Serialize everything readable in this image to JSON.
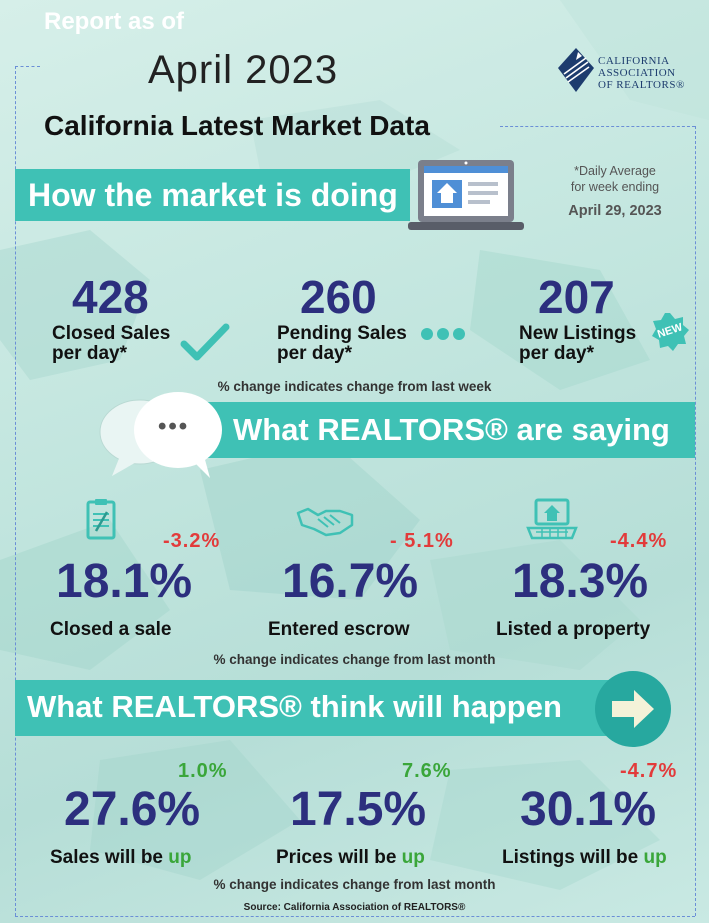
{
  "header": {
    "report_as_of": "Report as of",
    "month": "April 2023",
    "subtitle": "California Latest Market Data",
    "logo_line1": "CALIFORNIA",
    "logo_line2": "ASSOCIATION",
    "logo_line3": "OF REALTORS®"
  },
  "section1": {
    "title": "How the market is doing",
    "daily_line1": "*Daily Average",
    "daily_line2": "for week ending",
    "daily_date": "April 29, 2023",
    "stats": [
      {
        "value": "428",
        "label1": "Closed Sales",
        "label2": "per day*"
      },
      {
        "value": "260",
        "label1": "Pending Sales",
        "label2": "per day*"
      },
      {
        "value": "207",
        "label1": "New Listings",
        "label2": "per day*"
      }
    ],
    "new_badge": "NEW",
    "note": "% change indicates change from last week"
  },
  "section2": {
    "title": "What REALTORS® are saying",
    "chat_dots": "•••",
    "stats": [
      {
        "change": "-3.2%",
        "value": "18.1%",
        "label": "Closed a sale"
      },
      {
        "change": "- 5.1%",
        "value": "16.7%",
        "label": "Entered escrow"
      },
      {
        "change": "-4.4%",
        "value": "18.3%",
        "label": "Listed a property"
      }
    ],
    "note": "% change indicates change from last month"
  },
  "section3": {
    "title": "What REALTORS® think will happen",
    "stats": [
      {
        "change": "1.0%",
        "value": "27.6%",
        "label": "Sales will be ",
        "up": "up"
      },
      {
        "change": "7.6%",
        "value": "17.5%",
        "label": "Prices will be ",
        "up": "up"
      },
      {
        "change": "-4.7%",
        "value": "30.1%",
        "label": "Listings will be ",
        "up": "up"
      }
    ],
    "note": "% change indicates change from last month"
  },
  "footer": {
    "source": "Source: California Association of REALTORS®"
  },
  "colors": {
    "teal": "#3fc1b5",
    "navy": "#2c2f7e",
    "negative": "#e23b3b",
    "positive": "#3aa63a"
  }
}
